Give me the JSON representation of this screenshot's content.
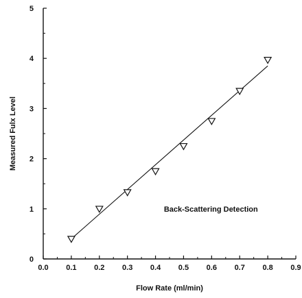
{
  "chart_data": {
    "type": "scatter",
    "title": "",
    "xlabel": "Flow Rate (ml/min)",
    "ylabel": "Measured Fulx Level",
    "xlim": [
      0.0,
      0.9
    ],
    "ylim": [
      0,
      5
    ],
    "xticks": [
      0.0,
      0.1,
      0.2,
      0.3,
      0.4,
      0.5,
      0.6,
      0.7,
      0.8,
      0.9
    ],
    "yticks": [
      0,
      1,
      2,
      3,
      4,
      5
    ],
    "xtick_labels": [
      "0.0",
      "0.1",
      "0.2",
      "0.3",
      "0.4",
      "0.5",
      "0.6",
      "0.7",
      "0.8",
      "0.9"
    ],
    "ytick_labels": [
      "0",
      "1",
      "2",
      "3",
      "4",
      "5"
    ],
    "grid": false,
    "marker": "inverted-triangle",
    "series": [
      {
        "x": [
          0.1,
          0.2,
          0.3,
          0.4,
          0.5,
          0.6,
          0.7,
          0.8
        ],
        "y": [
          0.4,
          1.0,
          1.33,
          1.75,
          2.25,
          2.75,
          3.35,
          3.97
        ]
      }
    ],
    "fit_line": {
      "x": [
        0.1,
        0.8
      ],
      "y": [
        0.4,
        3.85
      ]
    },
    "annotations": [
      {
        "text": "Back-Scattering Detection",
        "x": 0.43,
        "y": 1.0
      }
    ],
    "colors": {
      "axis": "#111111",
      "marker_stroke": "#111111",
      "marker_fill": "#ffffff",
      "line": "#111111"
    }
  }
}
